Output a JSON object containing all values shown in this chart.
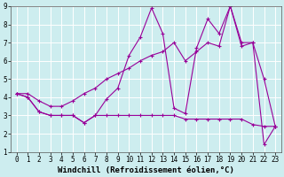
{
  "background_color": "#cdedef",
  "grid_color": "#ffffff",
  "line_color": "#990099",
  "xlabel": "Windchill (Refroidissement éolien,°C)",
  "xlim": [
    -0.5,
    23.5
  ],
  "ylim": [
    1,
    9
  ],
  "xticks": [
    0,
    1,
    2,
    3,
    4,
    5,
    6,
    7,
    8,
    9,
    10,
    11,
    12,
    13,
    14,
    15,
    16,
    17,
    18,
    19,
    20,
    21,
    22,
    23
  ],
  "yticks": [
    1,
    2,
    3,
    4,
    5,
    6,
    7,
    8,
    9
  ],
  "line1_x": [
    0,
    1,
    2,
    3,
    4,
    5,
    6,
    7,
    8,
    9,
    10,
    11,
    12,
    13,
    14,
    15,
    16,
    17,
    18,
    19,
    20,
    21,
    22,
    23
  ],
  "line1_y": [
    4.2,
    4.0,
    3.2,
    3.0,
    3.0,
    3.0,
    2.6,
    3.0,
    3.0,
    3.0,
    3.0,
    3.0,
    3.0,
    3.0,
    3.0,
    2.8,
    2.8,
    2.8,
    2.8,
    2.8,
    2.8,
    2.5,
    2.4,
    2.4
  ],
  "line2_x": [
    0,
    1,
    2,
    3,
    4,
    5,
    6,
    7,
    8,
    9,
    10,
    11,
    12,
    13,
    14,
    15,
    16,
    17,
    18,
    19,
    20,
    21,
    22,
    23
  ],
  "line2_y": [
    4.2,
    4.0,
    3.2,
    3.0,
    3.0,
    3.0,
    2.6,
    3.0,
    3.9,
    4.5,
    6.3,
    7.3,
    8.9,
    7.5,
    3.4,
    3.1,
    6.7,
    8.3,
    7.5,
    9.0,
    6.8,
    7.0,
    1.4,
    2.4
  ],
  "line3_x": [
    0,
    1,
    2,
    3,
    4,
    5,
    6,
    7,
    8,
    9,
    10,
    11,
    12,
    13,
    14,
    15,
    16,
    17,
    18,
    19,
    20,
    21,
    22,
    23
  ],
  "line3_y": [
    4.2,
    4.2,
    3.8,
    3.5,
    3.5,
    3.8,
    4.2,
    4.5,
    5.0,
    5.3,
    5.6,
    6.0,
    6.3,
    6.5,
    7.0,
    6.0,
    6.5,
    7.0,
    6.8,
    9.0,
    7.0,
    7.0,
    5.0,
    2.4
  ],
  "marker": "+",
  "markersize": 3,
  "linewidth": 0.8,
  "tick_fontsize": 5.5,
  "xlabel_fontsize": 6.5
}
